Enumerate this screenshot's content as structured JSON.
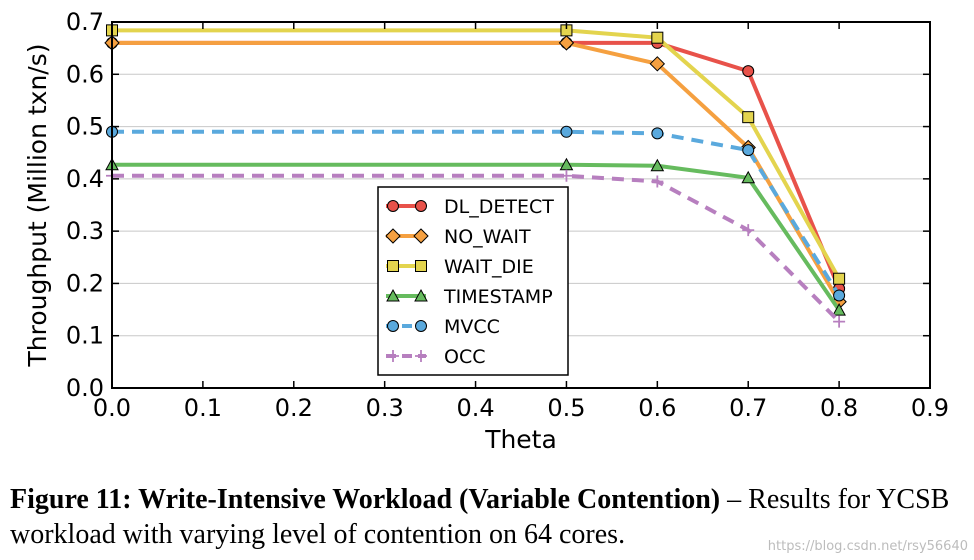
{
  "chart_data": {
    "type": "line",
    "xlabel": "Theta",
    "ylabel": "Throughput (Million txn/s)",
    "xlim": [
      0.0,
      0.9
    ],
    "ylim": [
      0.0,
      0.7
    ],
    "x_ticks": [
      "0.0",
      "0.1",
      "0.2",
      "0.3",
      "0.4",
      "0.5",
      "0.6",
      "0.7",
      "0.8",
      "0.9"
    ],
    "y_ticks": [
      "0.0",
      "0.1",
      "0.2",
      "0.3",
      "0.4",
      "0.5",
      "0.6",
      "0.7"
    ],
    "grid": "horizontal",
    "legend_position": "center",
    "x": [
      0.0,
      0.5,
      0.6,
      0.7,
      0.8
    ],
    "series": [
      {
        "name": "DL_DETECT",
        "values": [
          0.66,
          0.66,
          0.66,
          0.606,
          0.19
        ],
        "color": "#e8524a",
        "marker": "circle",
        "dash": "solid"
      },
      {
        "name": "NO_WAIT",
        "values": [
          0.66,
          0.66,
          0.62,
          0.46,
          0.165
        ],
        "color": "#f5a040",
        "marker": "diamond",
        "dash": "solid"
      },
      {
        "name": "WAIT_DIE",
        "values": [
          0.684,
          0.684,
          0.67,
          0.518,
          0.209
        ],
        "color": "#e3d44e",
        "marker": "square",
        "dash": "solid"
      },
      {
        "name": "TIMESTAMP",
        "values": [
          0.427,
          0.427,
          0.425,
          0.402,
          0.149
        ],
        "color": "#66bb5e",
        "marker": "triangle",
        "dash": "solid"
      },
      {
        "name": "MVCC",
        "values": [
          0.49,
          0.49,
          0.487,
          0.455,
          0.177
        ],
        "color": "#5aa9dd",
        "marker": "circle",
        "dash": "dashed"
      },
      {
        "name": "OCC",
        "values": [
          0.406,
          0.406,
          0.395,
          0.302,
          0.127
        ],
        "color": "#b77fbf",
        "marker": "plus",
        "dash": "dashed"
      }
    ]
  },
  "caption": {
    "bold": "Figure 11: Write-Intensive Workload (Variable Contention)",
    "rest": " – Results for YCSB workload with varying level of contention on 64 cores."
  },
  "watermark": "https://blog.csdn.net/rsy56640"
}
